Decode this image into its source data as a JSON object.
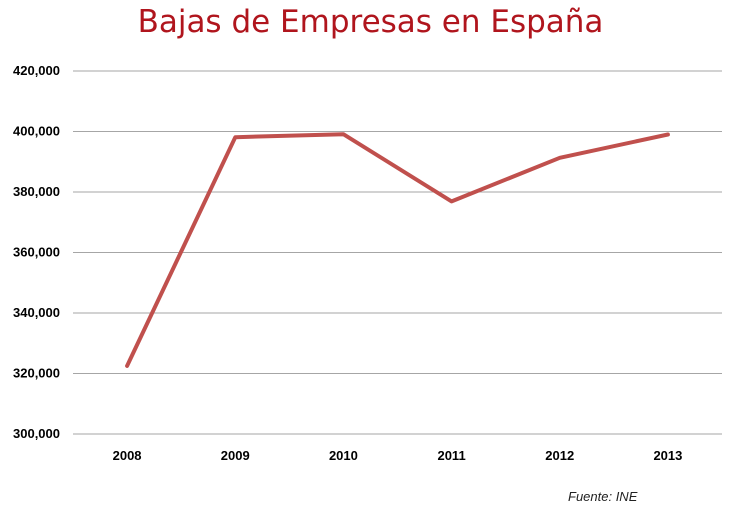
{
  "chart_data": {
    "type": "line",
    "title": "Bajas de Empresas en España",
    "xlabel": "",
    "ylabel": "",
    "categories": [
      "2008",
      "2009",
      "2010",
      "2011",
      "2012",
      "2013"
    ],
    "series": [
      {
        "values": [
          322500,
          398100,
          399100,
          376900,
          391300,
          399000
        ],
        "color": "#c0504d"
      }
    ],
    "ylim": [
      300000,
      420000
    ],
    "yticks": [
      300000,
      320000,
      340000,
      360000,
      380000,
      400000,
      420000
    ],
    "ytick_labels": [
      "300,000",
      "320,000",
      "340,000",
      "360,000",
      "380,000",
      "400,000",
      "420,000"
    ],
    "grid": true,
    "legend": "none",
    "gridline_color": "#a6a6a6",
    "title_color": "#b0151d"
  },
  "source_note": "Fuente: INE"
}
